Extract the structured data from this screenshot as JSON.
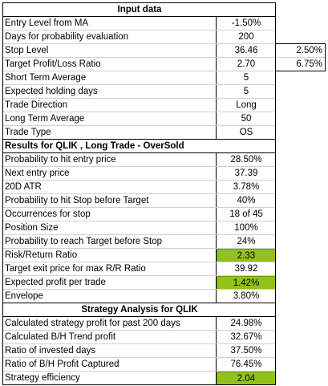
{
  "header_input": "Input data",
  "inputs": [
    {
      "label": "Entry Level from MA",
      "value": "-1.50%",
      "extra": ""
    },
    {
      "label": "Days for probability evaluation",
      "value": "200",
      "extra": ""
    },
    {
      "label": "Stop Level",
      "value": "36.46",
      "extra": "2.50%"
    },
    {
      "label": "Target Profit/Loss Ratio",
      "value": "2.70",
      "extra": "6.75%"
    },
    {
      "label": "Short Term Average",
      "value": "5",
      "extra": ""
    },
    {
      "label": "Expected holding days",
      "value": "5",
      "extra": ""
    },
    {
      "label": "Trade Direction",
      "value": "Long",
      "extra": ""
    },
    {
      "label": "Long Term Average",
      "value": "50",
      "extra": ""
    },
    {
      "label": "Trade Type",
      "value": "OS",
      "extra": ""
    }
  ],
  "header_results": "Results for QLIK , Long Trade - OverSold",
  "results": [
    {
      "label": "Probability to hit entry price",
      "value": "28.50%"
    },
    {
      "label": "Next entry price",
      "value": "37.39"
    },
    {
      "label": "20D ATR",
      "value": "3.78%"
    },
    {
      "label": "Probability to hit Stop before Target",
      "value": "40%"
    },
    {
      "label": "Occurrences for stop",
      "value": "18 of 45"
    },
    {
      "label": "Position Size",
      "value": "100%"
    },
    {
      "label": "Probability to reach Target before Stop",
      "value": "24%"
    },
    {
      "label": "Risk/Return Ratio",
      "value": "2.33"
    },
    {
      "label": "Target exit price for max R/R Ratio",
      "value": "39.92"
    },
    {
      "label": "Expected profit per trade",
      "value": "1.42%"
    },
    {
      "label": "Envelope",
      "value": "3.80%"
    }
  ],
  "header_strategy": "Strategy Analysis for QLIK",
  "strategy": [
    {
      "label": "Calculated strategy profit for past 200 days",
      "value": "24.98%"
    },
    {
      "label": "Calculated B/H Trend profit",
      "value": "32.67%"
    },
    {
      "label": "Ratio of invested days",
      "value": "37.50%"
    },
    {
      "label": "Ratio of B/H Profit Captured",
      "value": "76.45%"
    },
    {
      "label": "Strategy efficiency",
      "value": "2.04"
    }
  ],
  "colors": {
    "highlight": "#92c11e"
  }
}
